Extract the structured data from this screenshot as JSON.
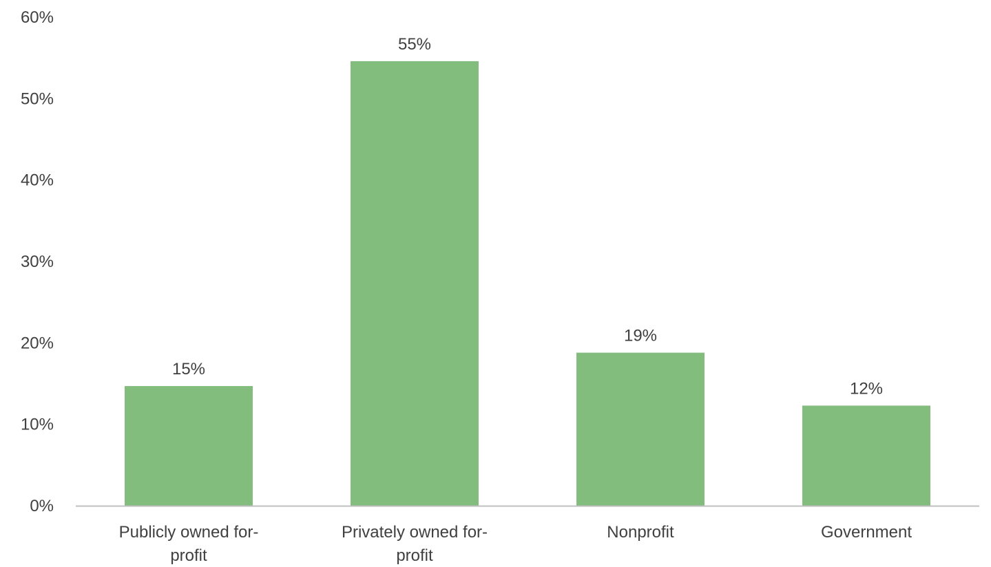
{
  "chart_data": {
    "type": "bar",
    "categories": [
      [
        "Publicly owned for-",
        "profit"
      ],
      [
        "Privately owned for-",
        "profit"
      ],
      [
        "Nonprofit"
      ],
      [
        "Government"
      ]
    ],
    "values": [
      14.7,
      54.6,
      18.8,
      12.3
    ],
    "data_labels": [
      "15%",
      "55%",
      "19%",
      "12%"
    ],
    "ylim": [
      0,
      60
    ],
    "yticks": [
      0,
      10,
      20,
      30,
      40,
      50,
      60
    ],
    "ytick_labels": [
      "0%",
      "10%",
      "20%",
      "30%",
      "40%",
      "50%",
      "60%"
    ],
    "title": "",
    "xlabel": "",
    "ylabel": "",
    "grid": false,
    "legend": "none",
    "colors": {
      "bar": "#82bd7e",
      "axis": "#bfbfbf",
      "text": "#404040"
    }
  }
}
